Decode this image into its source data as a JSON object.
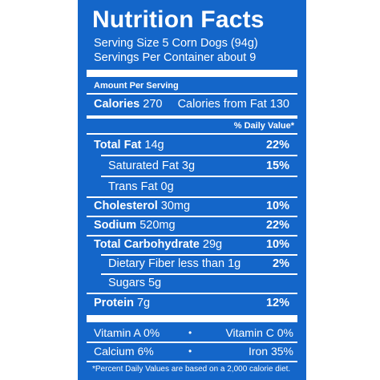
{
  "title": "Nutrition Facts",
  "serving_size": "Serving Size 5 Corn Dogs (94g)",
  "servings_per_container": "Servings Per Container about 9",
  "amount_per_serving": "Amount Per Serving",
  "calories": {
    "label": "Calories",
    "value": "270",
    "from_fat": "Calories from Fat 130"
  },
  "daily_value_header": "% Daily Value*",
  "nutrients": [
    {
      "label": "Total Fat",
      "amount": "14g",
      "dv": "22%"
    },
    {
      "label": "Saturated Fat 3g",
      "dv": "15%"
    },
    {
      "label": "Trans Fat 0g"
    },
    {
      "label": "Cholesterol",
      "amount": "30mg",
      "dv": "10%"
    },
    {
      "label": "Sodium",
      "amount": "520mg",
      "dv": "22%"
    },
    {
      "label": "Total Carbohydrate",
      "amount": "29g",
      "dv": "10%"
    },
    {
      "label": "Dietary Fiber less than 1g",
      "dv": "2%"
    },
    {
      "label": "Sugars 5g"
    },
    {
      "label": "Protein",
      "amount": "7g",
      "dv": "12%"
    }
  ],
  "vitamins": [
    {
      "left": "Vitamin A 0%",
      "right": "Vitamin C 0%"
    },
    {
      "left": "Calcium 6%",
      "right": "Iron 35%"
    }
  ],
  "bullet": "•",
  "footnote": "*Percent Daily Values are based on a 2,000 calorie diet.",
  "colors": {
    "panel": "#1466c9",
    "text": "#ffffff"
  }
}
